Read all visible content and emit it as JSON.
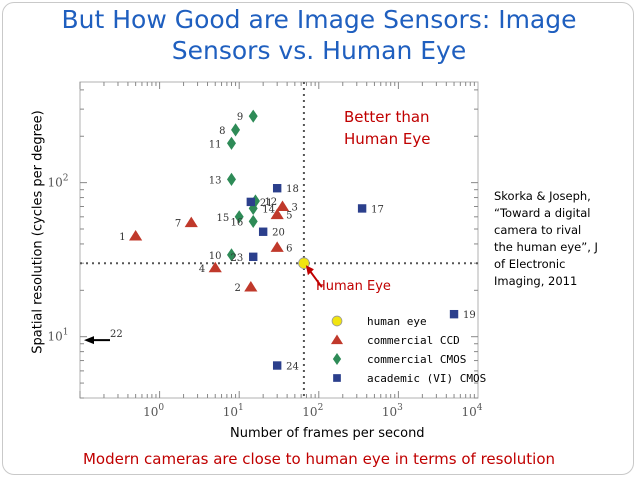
{
  "title": {
    "line1": "But How Good are Image Sensors: Image",
    "line2": "Sensors vs. Human Eye"
  },
  "caption": "Modern cameras are close to human eye in terms of resolution",
  "annotations": {
    "better_line1": "Better than",
    "better_line2": "Human Eye",
    "human_eye_label": "Human Eye"
  },
  "citation": {
    "lines": [
      "Skorka & Joseph,",
      "“Toward a digital",
      "camera to rival",
      "the human eye”, J",
      "of Electronic",
      "Imaging, 2011"
    ]
  },
  "colors": {
    "title": "#1f5fbf",
    "accent_red": "#c00000",
    "ccd": "#c0392b",
    "cmos": "#2e8b57",
    "academic": "#2b3f8c",
    "human_eye": "#f1e40f"
  },
  "chart_data": {
    "type": "scatter",
    "xlabel": "Number of frames per second",
    "ylabel": "Spatial resolution (cycles per degree)",
    "x_scale": "log",
    "y_scale": "log",
    "xlim": [
      0.1,
      10000
    ],
    "ylim": [
      4,
      450
    ],
    "x_ticks": [
      {
        "value": 1,
        "label": "10",
        "exp": "0"
      },
      {
        "value": 10,
        "label": "10",
        "exp": "1"
      },
      {
        "value": 100,
        "label": "10",
        "exp": "2"
      },
      {
        "value": 1000,
        "label": "10",
        "exp": "3"
      },
      {
        "value": 10000,
        "label": "10",
        "exp": "4"
      }
    ],
    "y_ticks": [
      {
        "value": 10,
        "label": "10",
        "exp": "1"
      },
      {
        "value": 100,
        "label": "10",
        "exp": "2"
      }
    ],
    "reference_lines": {
      "x": 65,
      "y": 30
    },
    "legend_position": "bottom-right",
    "series": [
      {
        "name": "human eye",
        "marker": "circle",
        "points": [
          {
            "x": 65,
            "y": 30,
            "label": ""
          }
        ]
      },
      {
        "name": "commercial CCD",
        "marker": "triangle",
        "points": [
          {
            "x": 0.5,
            "y": 45,
            "label": "1"
          },
          {
            "x": 14,
            "y": 21,
            "label": "2"
          },
          {
            "x": 35,
            "y": 70,
            "label": "3"
          },
          {
            "x": 5,
            "y": 28,
            "label": "4"
          },
          {
            "x": 30,
            "y": 62,
            "label": "5"
          },
          {
            "x": 30,
            "y": 38,
            "label": "6"
          },
          {
            "x": 2.5,
            "y": 55,
            "label": "7"
          }
        ]
      },
      {
        "name": "commercial CMOS",
        "marker": "diamond",
        "points": [
          {
            "x": 9,
            "y": 220,
            "label": "8"
          },
          {
            "x": 15,
            "y": 270,
            "label": "9"
          },
          {
            "x": 8,
            "y": 34,
            "label": "10"
          },
          {
            "x": 8,
            "y": 180,
            "label": "11"
          },
          {
            "x": 16,
            "y": 76,
            "label": "12"
          },
          {
            "x": 8,
            "y": 105,
            "label": "13"
          },
          {
            "x": 15,
            "y": 68,
            "label": "14"
          },
          {
            "x": 10,
            "y": 60,
            "label": "15"
          },
          {
            "x": 15,
            "y": 56,
            "label": "16"
          }
        ]
      },
      {
        "name": "academic (VI) CMOS",
        "marker": "square",
        "points": [
          {
            "x": 350,
            "y": 68,
            "label": "17"
          },
          {
            "x": 30,
            "y": 92,
            "label": "18"
          },
          {
            "x": 5000,
            "y": 14,
            "label": "19"
          },
          {
            "x": 20,
            "y": 48,
            "label": "20"
          },
          {
            "x": 14,
            "y": 75,
            "label": "21"
          },
          {
            "x": 15,
            "y": 33,
            "label": "23"
          },
          {
            "x": 30,
            "y": 6.5,
            "label": "24"
          }
        ]
      }
    ],
    "offscale_marker": {
      "label": "22",
      "y": 9.5,
      "direction": "left"
    }
  }
}
